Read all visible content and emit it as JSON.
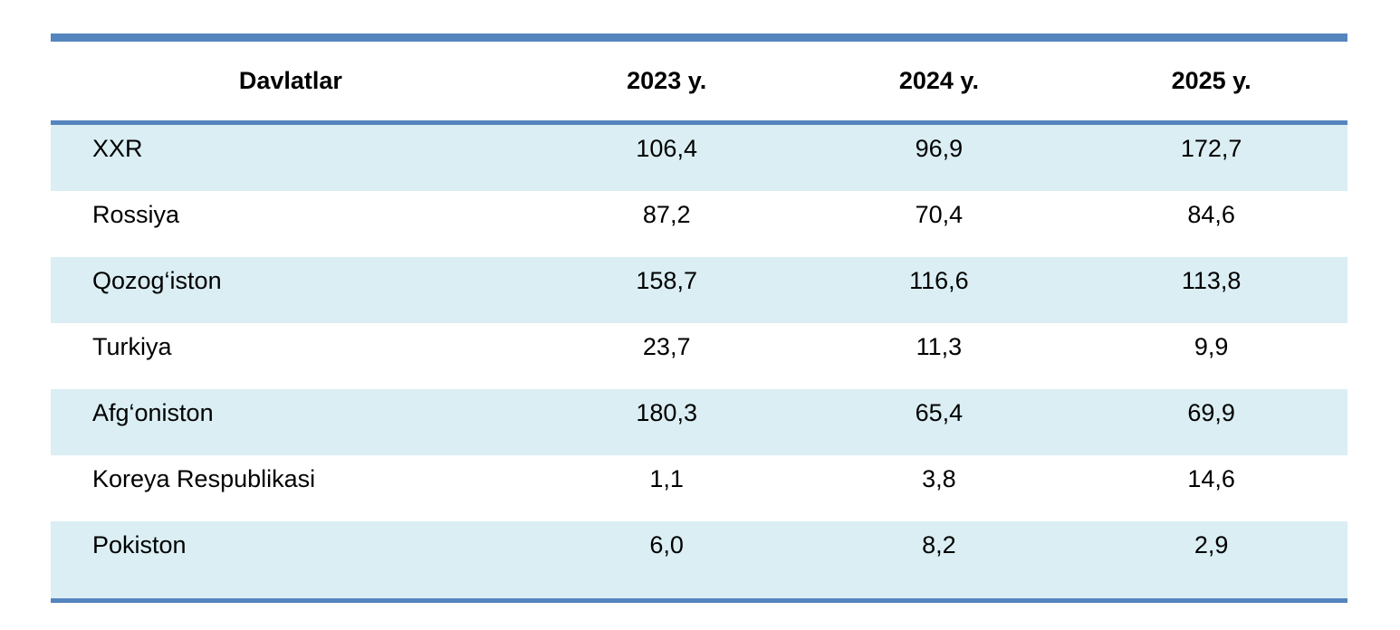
{
  "colors": {
    "accent_rule": "#5585be",
    "row_shade": "#daeef3",
    "row_plain": "#ffffff",
    "text": "#000000"
  },
  "table": {
    "columns": [
      "Davlatlar",
      "2023 y.",
      "2024 y.",
      "2025 y."
    ],
    "rows": [
      {
        "country": "XXR",
        "y2023": "106,4",
        "y2024": "96,9",
        "y2025": "172,7"
      },
      {
        "country": "Rossiya",
        "y2023": "87,2",
        "y2024": "70,4",
        "y2025": "84,6"
      },
      {
        "country": "Qozog‘iston",
        "y2023": "158,7",
        "y2024": "116,6",
        "y2025": "113,8"
      },
      {
        "country": "Turkiya",
        "y2023": "23,7",
        "y2024": "11,3",
        "y2025": "9,9"
      },
      {
        "country": "Afg‘oniston",
        "y2023": "180,3",
        "y2024": "65,4",
        "y2025": "69,9"
      },
      {
        "country": "Koreya Respublikasi",
        "y2023": "1,1",
        "y2024": "3,8",
        "y2025": "14,6"
      },
      {
        "country": "Pokiston",
        "y2023": "6,0",
        "y2024": "8,2",
        "y2025": "2,9"
      }
    ]
  }
}
